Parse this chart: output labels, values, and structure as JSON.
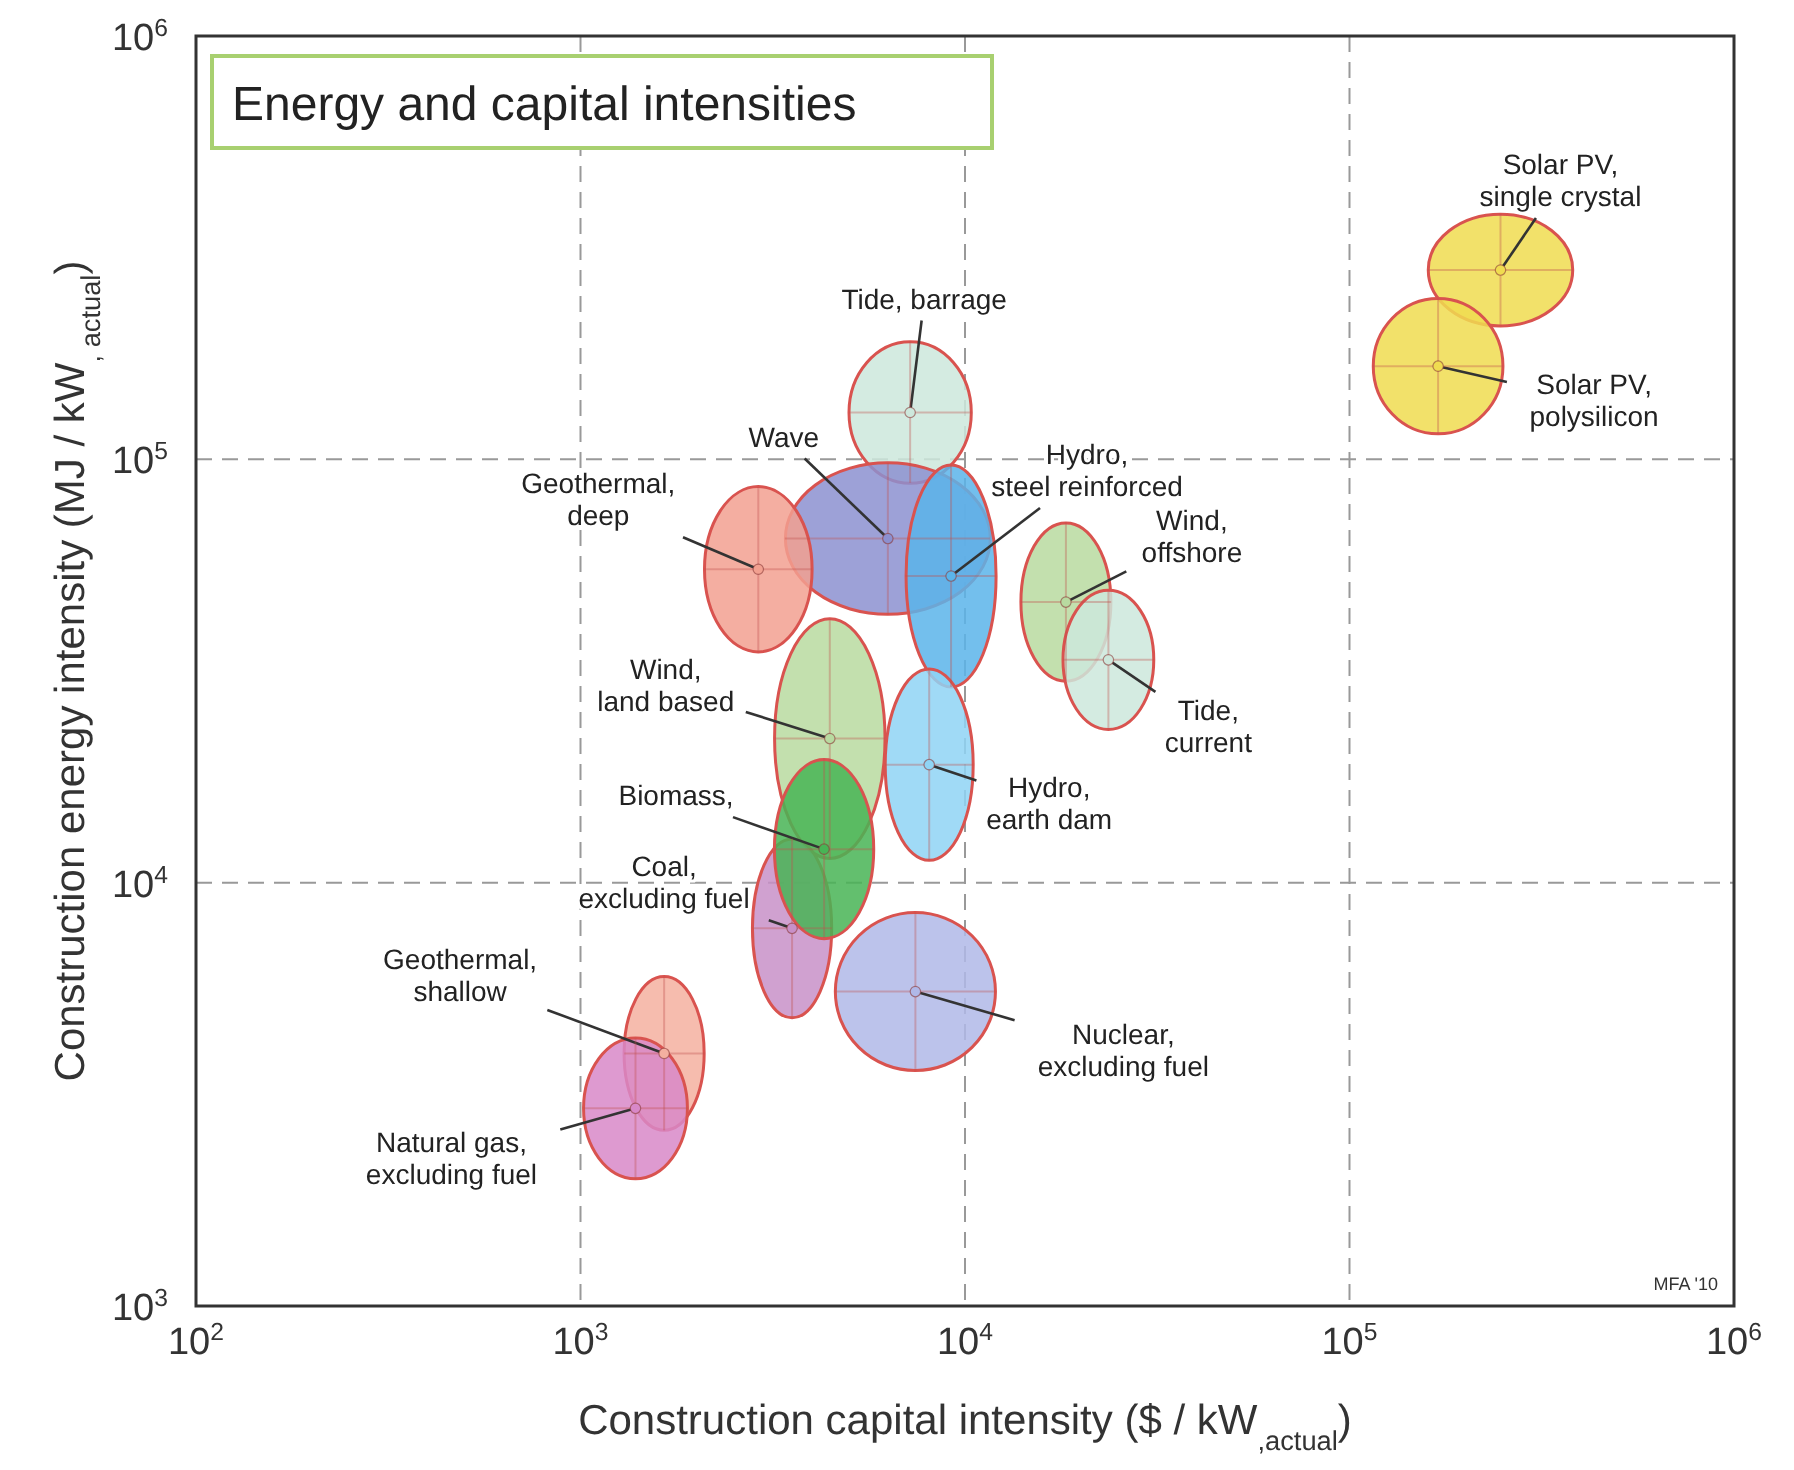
{
  "chart_data": {
    "type": "scatter",
    "title": "Energy and capital intensities",
    "xlabel": "Construction capital intensity  ($ / kW$_{,actual}$)",
    "ylabel": "Construction energy intensity  (MJ / kW$_{, actual}$)",
    "log": "xy",
    "grid": true,
    "xlim": [
      100,
      1000000
    ],
    "ylim": [
      1000,
      1000000
    ],
    "xticks": [
      {
        "value": 100,
        "label": "10$^{2}$"
      },
      {
        "value": 1000,
        "label": "10$^{3}$"
      },
      {
        "value": 10000,
        "label": "10$^{4}$"
      },
      {
        "value": 100000,
        "label": "10$^{5}$"
      },
      {
        "value": 1000000,
        "label": "10$^{6}$"
      }
    ],
    "yticks": [
      {
        "value": 1000,
        "label": "10$^{3}$"
      },
      {
        "value": 10000,
        "label": "10$^{4}$"
      },
      {
        "value": 100000,
        "label": "10$^{5}$"
      },
      {
        "value": 1000000,
        "label": "10$^{6}$"
      }
    ],
    "series": [
      {
        "color": "#f0dc50",
        "x": [
          247000
        ],
        "values": [
          280000
        ],
        "xerrors": [
          [
            160000,
            380000
          ]
        ],
        "errors": [
          [
            207000,
            380000
          ]
        ]
      },
      {
        "color": "#f0dc50",
        "x": [
          170000
        ],
        "values": [
          166000
        ],
        "xerrors": [
          [
            115000,
            250000
          ]
        ],
        "errors": [
          [
            115000,
            240000
          ]
        ]
      },
      {
        "color": "#cde8dc",
        "x": [
          7200
        ],
        "values": [
          129000
        ],
        "xerrors": [
          [
            5000,
            10400
          ]
        ],
        "errors": [
          [
            88000,
            190000
          ]
        ]
      },
      {
        "color": "#8c90d0",
        "x": [
          6300
        ],
        "values": [
          65000
        ],
        "xerrors": [
          [
            3400,
            11600
          ]
        ],
        "errors": [
          [
            43000,
            98000
          ]
        ]
      },
      {
        "color": "#5ab4ea",
        "x": [
          9200
        ],
        "values": [
          53000
        ],
        "xerrors": [
          [
            7000,
            12000
          ]
        ],
        "errors": [
          [
            29000,
            97000
          ]
        ]
      },
      {
        "color": "#f2a090",
        "x": [
          2900
        ],
        "values": [
          55000
        ],
        "xerrors": [
          [
            2100,
            4000
          ]
        ],
        "errors": [
          [
            35000,
            86000
          ]
        ]
      },
      {
        "color": "#b8daa0",
        "x": [
          18300
        ],
        "values": [
          46000
        ],
        "xerrors": [
          [
            14000,
            24000
          ]
        ],
        "errors": [
          [
            30000,
            71000
          ]
        ]
      },
      {
        "color": "#cde8dc",
        "x": [
          23600
        ],
        "values": [
          33600
        ],
        "xerrors": [
          [
            18000,
            31000
          ]
        ],
        "errors": [
          [
            23000,
            49000
          ]
        ]
      },
      {
        "color": "#b8daa0",
        "x": [
          4450
        ],
        "values": [
          21900
        ],
        "xerrors": [
          [
            3200,
            6200
          ]
        ],
        "errors": [
          [
            11400,
            42000
          ]
        ]
      },
      {
        "color": "#8fd4f5",
        "x": [
          8070
        ],
        "values": [
          19000
        ],
        "xerrors": [
          [
            6200,
            10500
          ]
        ],
        "errors": [
          [
            11300,
            32000
          ]
        ]
      },
      {
        "color": "#c890c8",
        "x": [
          3550
        ],
        "values": [
          7800
        ],
        "xerrors": [
          [
            2800,
            4500
          ]
        ],
        "errors": [
          [
            4800,
            12700
          ]
        ]
      },
      {
        "color": "#48b455",
        "x": [
          4300
        ],
        "values": [
          12000
        ],
        "xerrors": [
          [
            3200,
            5800
          ]
        ],
        "errors": [
          [
            7400,
            19600
          ]
        ]
      },
      {
        "color": "#b0b8e8",
        "x": [
          7430
        ],
        "values": [
          5530
        ],
        "xerrors": [
          [
            4600,
            12000
          ]
        ],
        "errors": [
          [
            3600,
            8500
          ]
        ]
      },
      {
        "color": "#f4b0a0",
        "x": [
          1650
        ],
        "values": [
          3950
        ],
        "xerrors": [
          [
            1300,
            2100
          ]
        ],
        "errors": [
          [
            2600,
            6000
          ]
        ]
      },
      {
        "color": "#d888c8",
        "x": [
          1390
        ],
        "values": [
          2930
        ],
        "xerrors": [
          [
            1020,
            1900
          ]
        ],
        "errors": [
          [
            2000,
            4300
          ]
        ]
      }
    ],
    "annotations": [
      {
        "text": "Solar PV,\nsingle crystal",
        "x": 247000,
        "y": 280000
      },
      {
        "text": "Solar PV,\npolysilicon",
        "x": 170000,
        "y": 166000
      },
      {
        "text": "Tide, barrage",
        "x": 7200,
        "y": 129000
      },
      {
        "text": "Wave",
        "x": 6300,
        "y": 65000
      },
      {
        "text": "Hydro,\nsteel reinforced",
        "x": 9200,
        "y": 53000
      },
      {
        "text": "Geothermal,\ndeep",
        "x": 2900,
        "y": 55000
      },
      {
        "text": "Wind,\noffshore",
        "x": 18300,
        "y": 46000
      },
      {
        "text": "Tide,\ncurrent",
        "x": 23600,
        "y": 33600
      },
      {
        "text": "Wind,\nland based",
        "x": 4450,
        "y": 21900
      },
      {
        "text": "Hydro,\nearth dam",
        "x": 8070,
        "y": 19000
      },
      {
        "text": "Coal,\nexcluding fuel",
        "x": 3550,
        "y": 7800
      },
      {
        "text": "Biomass,",
        "x": 4300,
        "y": 12000
      },
      {
        "text": "Nuclear,\nexcluding fuel",
        "x": 7430,
        "y": 5530
      },
      {
        "text": "Geothermal,\nshallow",
        "x": 1650,
        "y": 3950
      },
      {
        "text": "Natural gas,\nexcluding fuel",
        "x": 1390,
        "y": 2930
      },
      "MFA '10"
    ]
  }
}
